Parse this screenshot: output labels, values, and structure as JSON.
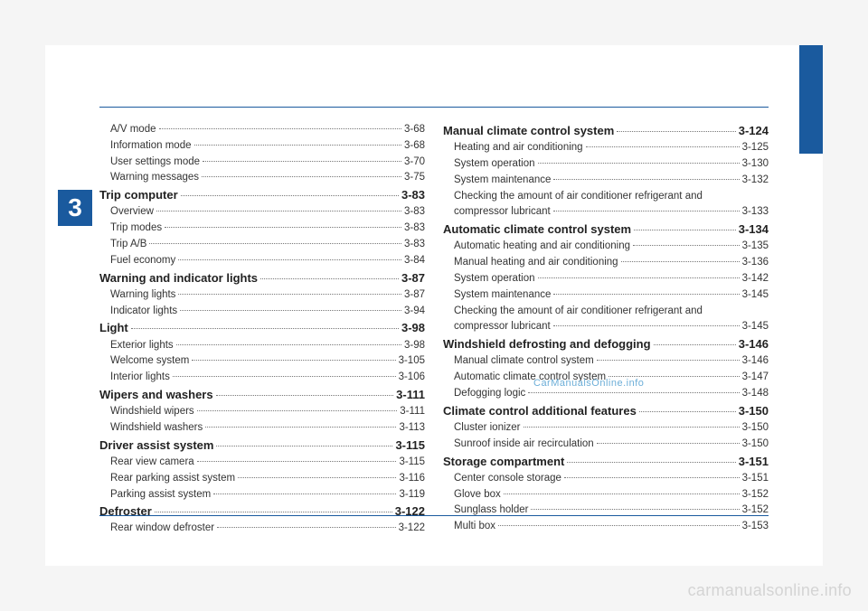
{
  "chapter_number": "3",
  "overlay_site": "CarManualsOnline.info",
  "watermark": "carmanualsonline.info",
  "colors": {
    "accent": "#1a5a9e",
    "text": "#333333",
    "overlay": "#6caed8",
    "watermark": "#d4d4d4",
    "page_bg": "#ffffff",
    "body_bg": "#f5f5f5"
  },
  "left_column": [
    {
      "label": "A/V mode",
      "page": "3-68",
      "section": false
    },
    {
      "label": "Information mode",
      "page": "3-68",
      "section": false
    },
    {
      "label": "User settings mode",
      "page": "3-70",
      "section": false
    },
    {
      "label": "Warning messages",
      "page": "3-75",
      "section": false
    },
    {
      "label": "Trip computer",
      "page": "3-83",
      "section": true
    },
    {
      "label": "Overview",
      "page": "3-83",
      "section": false
    },
    {
      "label": "Trip modes",
      "page": "3-83",
      "section": false
    },
    {
      "label": "Trip A/B",
      "page": "3-83",
      "section": false
    },
    {
      "label": "Fuel economy",
      "page": "3-84",
      "section": false
    },
    {
      "label": "Warning and indicator lights",
      "page": "3-87",
      "section": true
    },
    {
      "label": "Warning lights",
      "page": "3-87",
      "section": false
    },
    {
      "label": "Indicator lights",
      "page": "3-94",
      "section": false
    },
    {
      "label": "Light",
      "page": "3-98",
      "section": true
    },
    {
      "label": "Exterior lights",
      "page": "3-98",
      "section": false
    },
    {
      "label": "Welcome system",
      "page": "3-105",
      "section": false
    },
    {
      "label": "Interior lights",
      "page": "3-106",
      "section": false
    },
    {
      "label": "Wipers and washers",
      "page": "3-111",
      "section": true
    },
    {
      "label": "Windshield wipers",
      "page": "3-111",
      "section": false
    },
    {
      "label": "Windshield washers",
      "page": "3-113",
      "section": false
    },
    {
      "label": "Driver assist system",
      "page": "3-115",
      "section": true
    },
    {
      "label": "Rear view camera",
      "page": "3-115",
      "section": false
    },
    {
      "label": "Rear parking assist system",
      "page": "3-116",
      "section": false
    },
    {
      "label": "Parking assist system",
      "page": "3-119",
      "section": false
    },
    {
      "label": "Defroster",
      "page": "3-122",
      "section": true
    },
    {
      "label": "Rear window defroster",
      "page": "3-122",
      "section": false
    }
  ],
  "right_column": [
    {
      "label": "Manual climate control system",
      "page": "3-124",
      "section": true
    },
    {
      "label": "Heating and air conditioning",
      "page": "3-125",
      "section": false
    },
    {
      "label": "System operation",
      "page": "3-130",
      "section": false
    },
    {
      "label": "System maintenance",
      "page": "3-132",
      "section": false
    },
    {
      "label": "Checking the amount of air conditioner refrigerant and compressor lubricant",
      "page": "3-133",
      "section": false,
      "wrap": true
    },
    {
      "label": "Automatic climate control system",
      "page": "3-134",
      "section": true
    },
    {
      "label": "Automatic heating and air conditioning",
      "page": "3-135",
      "section": false
    },
    {
      "label": "Manual heating and air conditioning",
      "page": "3-136",
      "section": false
    },
    {
      "label": "System operation",
      "page": "3-142",
      "section": false
    },
    {
      "label": "System maintenance",
      "page": "3-145",
      "section": false
    },
    {
      "label": "Checking the amount of air conditioner refrigerant and compressor lubricant",
      "page": "3-145",
      "section": false,
      "wrap": true
    },
    {
      "label": "Windshield defrosting and defogging",
      "page": "3-146",
      "section": true
    },
    {
      "label": "Manual climate control system",
      "page": "3-146",
      "section": false
    },
    {
      "label": "Automatic climate control system",
      "page": "3-147",
      "section": false
    },
    {
      "label": "Defogging logic",
      "page": "3-148",
      "section": false
    },
    {
      "label": "Climate control additional features",
      "page": "3-150",
      "section": true
    },
    {
      "label": "Cluster ionizer",
      "page": "3-150",
      "section": false
    },
    {
      "label": "Sunroof inside air recirculation",
      "page": "3-150",
      "section": false
    },
    {
      "label": "Storage compartment",
      "page": "3-151",
      "section": true
    },
    {
      "label": "Center console storage",
      "page": "3-151",
      "section": false
    },
    {
      "label": "Glove box",
      "page": "3-152",
      "section": false
    },
    {
      "label": "Sunglass holder",
      "page": "3-152",
      "section": false
    },
    {
      "label": "Multi box",
      "page": "3-153",
      "section": false
    }
  ]
}
